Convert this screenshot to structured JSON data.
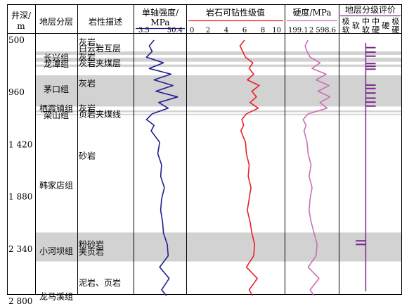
{
  "headers": {
    "depth": [
      "井深/",
      "m"
    ],
    "stratum": "地层分层",
    "lithology": "岩性描述",
    "ucs": [
      "单轴强度/",
      "MPa"
    ],
    "drill": "岩石可钻性级值",
    "hardness": "硬度/MPa",
    "grade": "地层分级评价",
    "grade_classes": [
      {
        "text": "极软",
        "layout": "stack2"
      },
      {
        "text": "软",
        "layout": "one"
      },
      {
        "text": "中软",
        "layout": "stack2"
      },
      {
        "text": "中硬",
        "layout": "stack2"
      },
      {
        "text": "硬",
        "layout": "one"
      },
      {
        "text": "极硬",
        "layout": "stack2"
      }
    ]
  },
  "depth_ticks": [
    "500",
    "960",
    "1 420",
    "1 880",
    "2 340",
    "2 800"
  ],
  "formations": [
    {
      "name": "长兴组",
      "label_depth": 655
    },
    {
      "name": "龙潭组",
      "label_depth": 710
    },
    {
      "name": "茅口组",
      "label_depth": 935
    },
    {
      "name": "栖霞镇组",
      "label_depth": 1105
    },
    {
      "name": "梁山组",
      "label_depth": 1162
    },
    {
      "name": "韩家店组",
      "label_depth": 1780
    },
    {
      "name": "小河坝组",
      "label_depth": 2360
    },
    {
      "name": "龙马溪组",
      "label_depth": 2760
    }
  ],
  "lithology_labels": [
    {
      "text": "灰岩、",
      "label_depth": 518
    },
    {
      "text": "白云岩互层",
      "label_depth": 575
    },
    {
      "text": "灰岩",
      "label_depth": 650
    },
    {
      "text": "灰岩夹煤层",
      "label_depth": 705
    },
    {
      "text": "灰岩",
      "label_depth": 880
    },
    {
      "text": "灰岩",
      "label_depth": 1100
    },
    {
      "text": "页岩夹煤线",
      "label_depth": 1155
    },
    {
      "text": "砂岩",
      "label_depth": 1520
    },
    {
      "text": "粉砂岩",
      "label_depth": 2300
    },
    {
      "text": "夹页岩",
      "label_depth": 2365
    },
    {
      "text": "泥岩、页岩",
      "label_depth": 2640
    }
  ],
  "chart_data": {
    "type": "line",
    "depth_axis": {
      "label": "井深/m",
      "range": [
        500,
        2800
      ],
      "ticks": [
        500,
        960,
        1420,
        1880,
        2340,
        2800
      ]
    },
    "shaded_intervals": [
      [
        600,
        630
      ],
      [
        655,
        690
      ],
      [
        715,
        735
      ],
      [
        810,
        1085
      ],
      [
        1120,
        1135
      ],
      [
        1150,
        1160
      ],
      [
        2195,
        2450
      ]
    ],
    "tracks": [
      {
        "name": "单轴强度/MPa",
        "range": [
          3.5,
          50.4
        ],
        "tick_labels": [
          "3.5",
          "50.4"
        ],
        "color": "#1f1f8f"
      },
      {
        "name": "岩石可钻性级值",
        "range": [
          0,
          10
        ],
        "tick_labels": [
          "0",
          "2",
          "4",
          "6",
          "8",
          "10"
        ],
        "color": "#e8202a"
      },
      {
        "name": "硬度/MPa",
        "range": [
          199.1,
          2598.6
        ],
        "tick_labels": [
          "199.1",
          "2 598.6"
        ],
        "color": "#c870b8"
      }
    ],
    "series": [
      {
        "track": 0,
        "depth": [
          500,
          550,
          600,
          650,
          700,
          750,
          800,
          850,
          900,
          950,
          1000,
          1050,
          1100,
          1150,
          1200,
          1250,
          1300,
          1400,
          1500,
          1600,
          1700,
          1800,
          1900,
          2000,
          2100,
          2200,
          2300,
          2400,
          2500,
          2600,
          2700,
          2800
        ],
        "values": [
          20,
          15,
          18,
          12,
          30,
          15,
          38,
          20,
          40,
          22,
          45,
          25,
          35,
          18,
          12,
          20,
          17,
          26,
          24,
          28,
          27,
          31,
          28,
          27,
          29,
          30,
          34,
          35,
          26,
          36,
          28,
          38
        ]
      },
      {
        "track": 1,
        "depth": [
          500,
          550,
          600,
          650,
          700,
          750,
          800,
          850,
          900,
          950,
          1000,
          1050,
          1100,
          1150,
          1200,
          1250,
          1300,
          1400,
          1500,
          1600,
          1700,
          1800,
          1900,
          2000,
          2100,
          2200,
          2300,
          2400,
          2500,
          2600,
          2700,
          2800
        ],
        "values": [
          6.0,
          5.5,
          5.8,
          6.1,
          6.9,
          6.5,
          7.0,
          6.3,
          7.6,
          6.8,
          7.3,
          6.6,
          7.5,
          6.2,
          5.7,
          5.9,
          5.6,
          6.1,
          6.2,
          6.5,
          6.4,
          6.7,
          6.5,
          6.3,
          6.6,
          6.8,
          7.1,
          7.0,
          6.2,
          7.4,
          6.5,
          7.2
        ]
      },
      {
        "track": 2,
        "depth": [
          500,
          550,
          600,
          650,
          700,
          750,
          800,
          850,
          900,
          950,
          1000,
          1050,
          1100,
          1150,
          1200,
          1250,
          1300,
          1400,
          1500,
          1600,
          1700,
          1800,
          1900,
          2000,
          2100,
          2200,
          2300,
          2400,
          2500,
          2600,
          2700,
          2800
        ],
        "values": [
          1200,
          1050,
          1150,
          1300,
          1800,
          1400,
          2100,
          1600,
          2250,
          1700,
          2300,
          1800,
          2150,
          1200,
          950,
          1100,
          1000,
          1150,
          1200,
          1350,
          1250,
          1400,
          1300,
          1250,
          1350,
          1500,
          1650,
          1600,
          1200,
          1750,
          1300,
          1700
        ]
      }
    ],
    "grade_evaluation": {
      "classes": [
        "极软",
        "软",
        "中软",
        "中硬",
        "硬",
        "极硬"
      ],
      "baseline_class": "中软",
      "intervals": [
        {
          "top": 560,
          "bottom": 570,
          "class": "中硬"
        },
        {
          "top": 600,
          "bottom": 610,
          "class": "中硬"
        },
        {
          "top": 635,
          "bottom": 645,
          "class": "中硬"
        },
        {
          "top": 700,
          "bottom": 710,
          "class": "中硬"
        },
        {
          "top": 725,
          "bottom": 735,
          "class": "中硬"
        },
        {
          "top": 750,
          "bottom": 760,
          "class": "中硬"
        },
        {
          "top": 890,
          "bottom": 900,
          "class": "中硬"
        },
        {
          "top": 920,
          "bottom": 930,
          "class": "中硬"
        },
        {
          "top": 960,
          "bottom": 968,
          "class": "中硬"
        },
        {
          "top": 1005,
          "bottom": 1015,
          "class": "中硬"
        },
        {
          "top": 1040,
          "bottom": 1050,
          "class": "中硬"
        },
        {
          "top": 1075,
          "bottom": 1085,
          "class": "中硬"
        },
        {
          "top": 2262,
          "bottom": 2272,
          "class": "软"
        },
        {
          "top": 2294,
          "bottom": 2304,
          "class": "软"
        }
      ]
    }
  }
}
